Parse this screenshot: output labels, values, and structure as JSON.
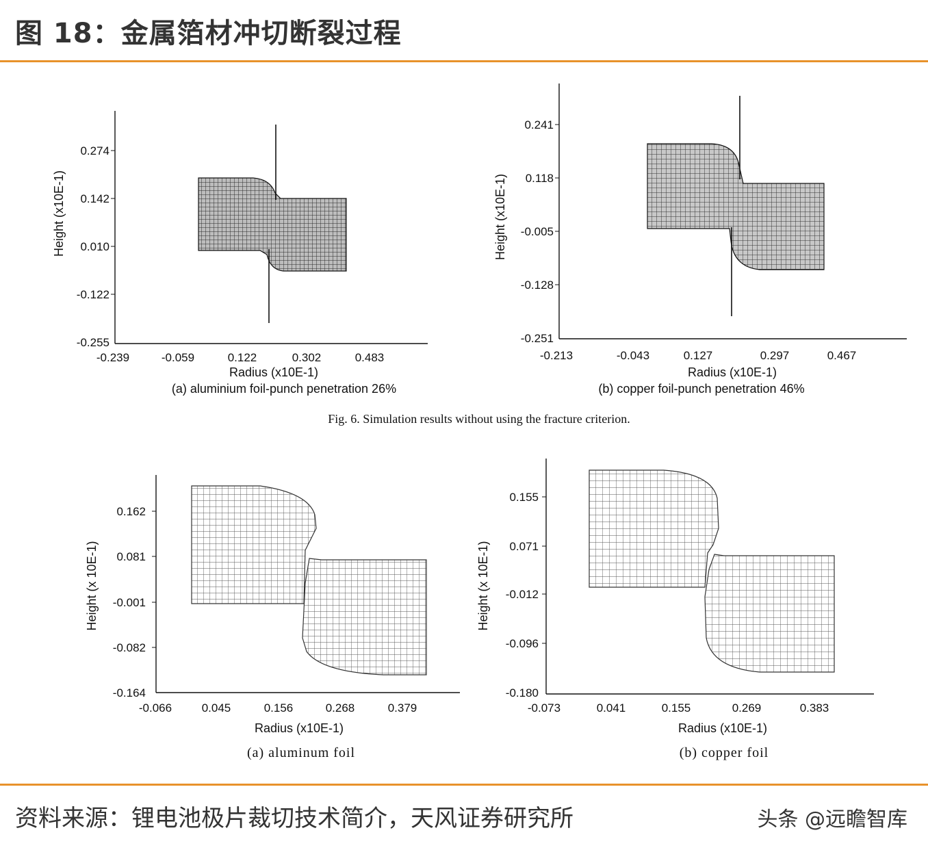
{
  "header": {
    "title": "图 18：金属箔材冲切断裂过程"
  },
  "footer": {
    "source": "资料来源：锂电池极片裁切技术简介，天风证券研究所",
    "watermark": "头条 @远瞻智库"
  },
  "figure": {
    "top_caption": "Fig. 6. Simulation results without using the fracture criterion.",
    "panels": [
      {
        "id": "top-left",
        "xlabel": "Radius (x10E-1)",
        "ylabel": "Height (x10E-1)",
        "xticks": [
          "-0.239",
          "-0.059",
          "0.122",
          "0.302",
          "0.483"
        ],
        "yticks": [
          "0.274",
          "0.142",
          "0.010",
          "-0.122",
          "-0.255"
        ],
        "caption": "(a) aluminium foil-punch penetration 26%",
        "mesh_shade": "#2a2a2a"
      },
      {
        "id": "top-right",
        "xlabel": "Radius (x10E-1)",
        "ylabel": "Height (x10E-1)",
        "xticks": [
          "-0.213",
          "-0.043",
          "0.127",
          "0.297",
          "0.467"
        ],
        "yticks": [
          "0.241",
          "0.118",
          "-0.005",
          "-0.128",
          "-0.251"
        ],
        "caption": "(b) copper foil-punch penetration 46%",
        "mesh_shade": "#333333"
      },
      {
        "id": "bottom-left",
        "xlabel": "Radius (x10E-1)",
        "ylabel": "Height (x 10E-1)",
        "xticks": [
          "-0.066",
          "0.045",
          "0.156",
          "0.268",
          "0.379"
        ],
        "yticks": [
          "0.162",
          "0.081",
          "-0.001",
          "-0.082",
          "-0.164"
        ],
        "caption": "(a)  aluminum  foil",
        "mesh_shade": "#555555"
      },
      {
        "id": "bottom-right",
        "xlabel": "Radius (x10E-1)",
        "ylabel": "Height (x 10E-1)",
        "xticks": [
          "-0.073",
          "0.041",
          "0.155",
          "0.269",
          "0.383"
        ],
        "yticks": [
          "0.155",
          "0.071",
          "-0.012",
          "-0.096",
          "-0.180"
        ],
        "caption": "(b)  copper  foil",
        "mesh_shade": "#555555"
      }
    ]
  }
}
